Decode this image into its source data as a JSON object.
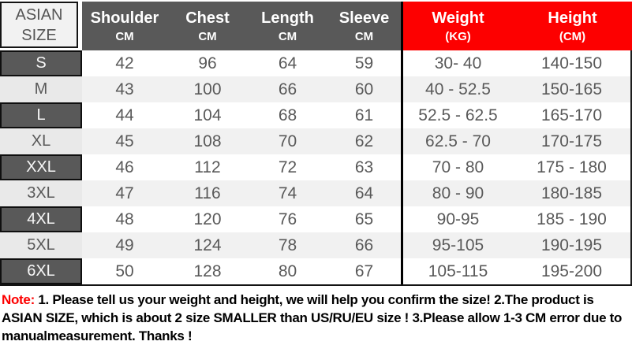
{
  "colors": {
    "header_gray": "#595959",
    "header_red": "#fd0000",
    "row_alt_gray": "#f1f1f1",
    "body_text": "#595959",
    "note_label_red": "#fd0000"
  },
  "table": {
    "size_header": {
      "line1": "ASIAN",
      "line2": "SIZE"
    },
    "columns": [
      {
        "label": "Shoulder",
        "unit": "CM"
      },
      {
        "label": "Chest",
        "unit": "CM"
      },
      {
        "label": "Length",
        "unit": "CM"
      },
      {
        "label": "Sleeve",
        "unit": "CM"
      },
      {
        "label": "Weight",
        "unit": "(KG)"
      },
      {
        "label": "Height",
        "unit": "(CM)"
      }
    ],
    "rows": [
      [
        "S",
        "42",
        "96",
        "64",
        "59",
        "30- 40",
        "140-150"
      ],
      [
        "M",
        "43",
        "100",
        "66",
        "60",
        "40 - 52.5",
        "150-165"
      ],
      [
        "L",
        "44",
        "104",
        "68",
        "61",
        "52.5 - 62.5",
        "165-170"
      ],
      [
        "XL",
        "45",
        "108",
        "70",
        "62",
        "62.5 - 70",
        "170-175"
      ],
      [
        "XXL",
        "46",
        "112",
        "72",
        "63",
        "70  - 80",
        "175 - 180"
      ],
      [
        "3XL",
        "47",
        "116",
        "74",
        "64",
        "80  - 90",
        "180-185"
      ],
      [
        "4XL",
        "48",
        "120",
        "76",
        "65",
        "90-95",
        "185 - 190"
      ],
      [
        "5XL",
        "49",
        "124",
        "78",
        "66",
        "95-105",
        "190-195"
      ],
      [
        "6XL",
        "50",
        "128",
        "80",
        "67",
        "105-115",
        "195-200"
      ]
    ]
  },
  "note": {
    "label": "Note:",
    "text": "1. Please tell us your weight and height, we will help you confirm the size!  2.The product is ASIAN SIZE, which is about 2 size SMALLER than US/RU/EU size ! 3.Please allow 1-3 CM error due to manualmeasurement.  Thanks !"
  }
}
